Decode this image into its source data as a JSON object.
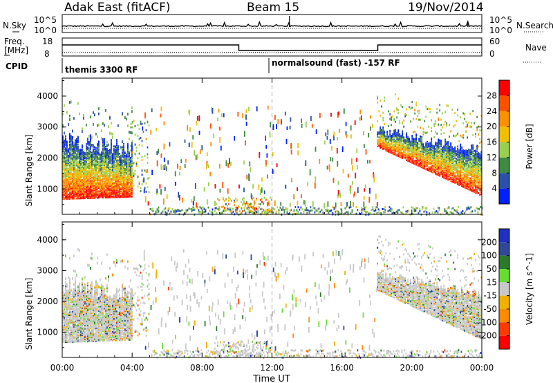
{
  "header": {
    "station": "Adak East (fitACF)",
    "beam": "Beam 15",
    "date": "19/Nov/2014"
  },
  "top_panel": {
    "left_label": "N.Sky",
    "right_label": "N.Search",
    "left_ticks": [
      "10^5",
      "10^0"
    ],
    "right_ticks": [
      "10^5",
      "10^0"
    ]
  },
  "freq_panel": {
    "left_label_1": "Freq.",
    "left_label_2": "[MHz]",
    "right_label": "Nave",
    "left_ticks": [
      "18",
      "8"
    ],
    "right_ticks": [
      "60",
      "0"
    ]
  },
  "cpid_panel": {
    "label": "CPID",
    "segments": [
      "themis 3300 RF",
      "normalsound (fast) -157 RF"
    ]
  },
  "colors": {
    "power": [
      "#0020ff",
      "#2a50a8",
      "#3f8a3f",
      "#9ad050",
      "#f0c000",
      "#ff9000",
      "#ff5000",
      "#ff0000"
    ],
    "velocity": [
      "#2030c0",
      "#304898",
      "#2a7a2a",
      "#66dd33",
      "#c8c8c8",
      "#f0b000",
      "#ff8a00",
      "#ff3a00",
      "#ff0000"
    ]
  },
  "chart_data": [
    {
      "type": "heatmap",
      "name": "",
      "xlabel": "",
      "ylabel": "Slant Range [km]",
      "y_ticks": [
        "1000",
        "2000",
        "3000",
        "4000"
      ],
      "ylim": [
        180,
        4580
      ],
      "colorbar_label": "Power [dB]",
      "colorbar_ticks": [
        "28",
        "24",
        "20",
        "16",
        "12",
        "8",
        "4"
      ],
      "colorbar_range": [
        0,
        32
      ]
    },
    {
      "type": "heatmap",
      "name": "",
      "xlabel": "Time UT",
      "ylabel": "Slant Range [km]",
      "x_ticks": [
        "00:00",
        "04:00",
        "08:00",
        "12:00",
        "16:00",
        "20:00",
        "00:00"
      ],
      "xlim": [
        0,
        24
      ],
      "y_ticks": [
        "1000",
        "2000",
        "3000",
        "4000"
      ],
      "ylim": [
        180,
        4580
      ],
      "colorbar_label": "Velocity [m s^-1]",
      "colorbar_ticks": [
        "200",
        "100",
        "50",
        "15",
        "-15",
        "-50",
        "-100",
        "-200"
      ]
    }
  ]
}
